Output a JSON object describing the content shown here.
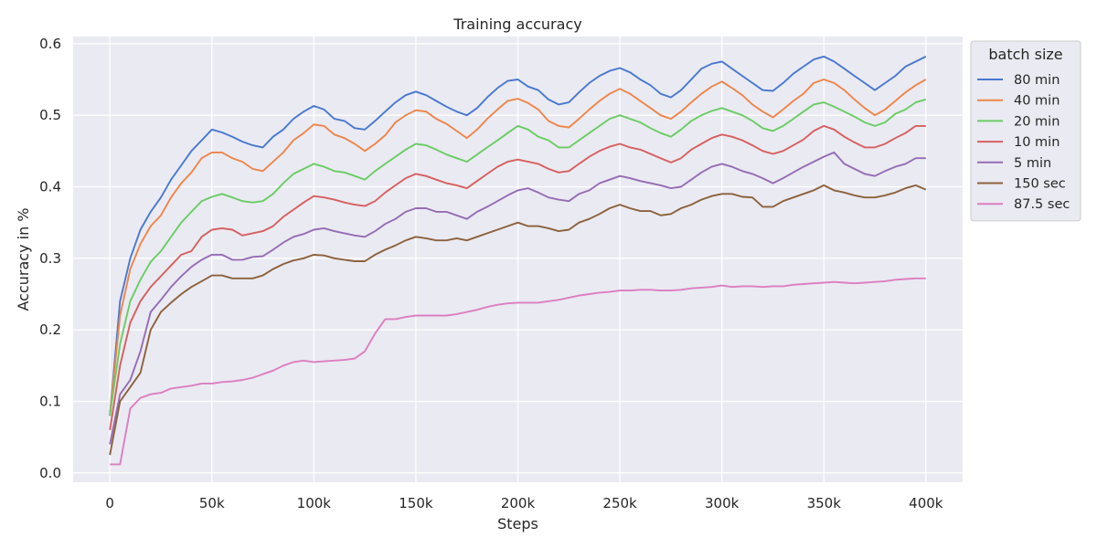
{
  "chart_data": {
    "type": "line",
    "title": "Training accuracy",
    "xlabel": "Steps",
    "ylabel": "Accuracy in %",
    "xlim": [
      -18000,
      418000
    ],
    "ylim": [
      -0.013,
      0.61
    ],
    "x_ticks": [
      0,
      50000,
      100000,
      150000,
      200000,
      250000,
      300000,
      350000,
      400000
    ],
    "x_tick_labels": [
      "0",
      "50k",
      "100k",
      "150k",
      "200k",
      "250k",
      "300k",
      "350k",
      "400k"
    ],
    "y_ticks": [
      0.0,
      0.1,
      0.2,
      0.3,
      0.4,
      0.5,
      0.6
    ],
    "y_tick_labels": [
      "0.0",
      "0.1",
      "0.2",
      "0.3",
      "0.4",
      "0.5",
      "0.6"
    ],
    "grid": true,
    "legend": {
      "title": "batch size",
      "placement": "outside-right"
    },
    "x": [
      0,
      5000,
      10000,
      15000,
      20000,
      25000,
      30000,
      35000,
      40000,
      45000,
      50000,
      55000,
      60000,
      65000,
      70000,
      75000,
      80000,
      85000,
      90000,
      95000,
      100000,
      105000,
      110000,
      115000,
      120000,
      125000,
      130000,
      135000,
      140000,
      145000,
      150000,
      155000,
      160000,
      165000,
      170000,
      175000,
      180000,
      185000,
      190000,
      195000,
      200000,
      205000,
      210000,
      215000,
      220000,
      225000,
      230000,
      235000,
      240000,
      245000,
      250000,
      255000,
      260000,
      265000,
      270000,
      275000,
      280000,
      285000,
      290000,
      295000,
      300000,
      305000,
      310000,
      315000,
      320000,
      325000,
      330000,
      335000,
      340000,
      345000,
      350000,
      355000,
      360000,
      365000,
      370000,
      375000,
      380000,
      385000,
      390000,
      395000,
      400000
    ],
    "series": [
      {
        "name": "80 min",
        "color": "#4878d0",
        "values": [
          0.08,
          0.24,
          0.3,
          0.34,
          0.365,
          0.385,
          0.41,
          0.43,
          0.45,
          0.465,
          0.48,
          0.476,
          0.47,
          0.463,
          0.458,
          0.455,
          0.47,
          0.48,
          0.495,
          0.505,
          0.513,
          0.508,
          0.495,
          0.492,
          0.482,
          0.48,
          0.492,
          0.505,
          0.518,
          0.528,
          0.533,
          0.528,
          0.52,
          0.512,
          0.505,
          0.5,
          0.51,
          0.525,
          0.538,
          0.548,
          0.55,
          0.54,
          0.535,
          0.522,
          0.515,
          0.518,
          0.532,
          0.545,
          0.555,
          0.562,
          0.566,
          0.56,
          0.55,
          0.542,
          0.53,
          0.525,
          0.535,
          0.55,
          0.565,
          0.572,
          0.575,
          0.565,
          0.555,
          0.545,
          0.535,
          0.534,
          0.545,
          0.558,
          0.568,
          0.578,
          0.582,
          0.575,
          0.565,
          0.555,
          0.545,
          0.535,
          0.545,
          0.555,
          0.568,
          0.575,
          0.582
        ]
      },
      {
        "name": "40 min",
        "color": "#ee854a",
        "values": [
          0.08,
          0.22,
          0.285,
          0.32,
          0.345,
          0.36,
          0.385,
          0.405,
          0.42,
          0.44,
          0.448,
          0.448,
          0.44,
          0.435,
          0.425,
          0.422,
          0.435,
          0.448,
          0.465,
          0.475,
          0.487,
          0.485,
          0.473,
          0.468,
          0.46,
          0.45,
          0.46,
          0.472,
          0.49,
          0.5,
          0.507,
          0.505,
          0.495,
          0.488,
          0.478,
          0.468,
          0.48,
          0.495,
          0.508,
          0.52,
          0.523,
          0.517,
          0.508,
          0.492,
          0.485,
          0.483,
          0.495,
          0.508,
          0.52,
          0.53,
          0.537,
          0.53,
          0.52,
          0.51,
          0.5,
          0.495,
          0.505,
          0.518,
          0.53,
          0.54,
          0.547,
          0.538,
          0.528,
          0.515,
          0.505,
          0.497,
          0.508,
          0.52,
          0.53,
          0.545,
          0.55,
          0.545,
          0.535,
          0.522,
          0.51,
          0.5,
          0.508,
          0.52,
          0.532,
          0.542,
          0.55
        ]
      },
      {
        "name": "20 min",
        "color": "#6acc64",
        "values": [
          0.08,
          0.18,
          0.24,
          0.27,
          0.295,
          0.31,
          0.33,
          0.35,
          0.365,
          0.38,
          0.386,
          0.39,
          0.385,
          0.38,
          0.378,
          0.38,
          0.39,
          0.405,
          0.418,
          0.425,
          0.432,
          0.428,
          0.422,
          0.42,
          0.415,
          0.41,
          0.422,
          0.432,
          0.442,
          0.452,
          0.46,
          0.458,
          0.452,
          0.445,
          0.44,
          0.435,
          0.445,
          0.455,
          0.465,
          0.475,
          0.485,
          0.48,
          0.47,
          0.465,
          0.455,
          0.455,
          0.465,
          0.475,
          0.485,
          0.495,
          0.5,
          0.495,
          0.49,
          0.482,
          0.475,
          0.47,
          0.48,
          0.492,
          0.5,
          0.506,
          0.51,
          0.505,
          0.5,
          0.492,
          0.482,
          0.478,
          0.485,
          0.495,
          0.505,
          0.515,
          0.518,
          0.512,
          0.505,
          0.498,
          0.49,
          0.485,
          0.49,
          0.502,
          0.508,
          0.518,
          0.522
        ]
      },
      {
        "name": "10 min",
        "color": "#d65f5f",
        "values": [
          0.06,
          0.15,
          0.21,
          0.24,
          0.26,
          0.275,
          0.29,
          0.305,
          0.31,
          0.33,
          0.34,
          0.342,
          0.34,
          0.332,
          0.335,
          0.338,
          0.345,
          0.358,
          0.368,
          0.378,
          0.387,
          0.385,
          0.382,
          0.378,
          0.375,
          0.373,
          0.38,
          0.392,
          0.402,
          0.412,
          0.418,
          0.415,
          0.41,
          0.405,
          0.402,
          0.398,
          0.408,
          0.418,
          0.428,
          0.435,
          0.438,
          0.435,
          0.432,
          0.425,
          0.42,
          0.422,
          0.432,
          0.442,
          0.45,
          0.456,
          0.46,
          0.455,
          0.452,
          0.446,
          0.44,
          0.434,
          0.44,
          0.452,
          0.46,
          0.468,
          0.473,
          0.47,
          0.465,
          0.458,
          0.45,
          0.446,
          0.45,
          0.458,
          0.466,
          0.478,
          0.485,
          0.48,
          0.47,
          0.462,
          0.455,
          0.455,
          0.46,
          0.468,
          0.475,
          0.485,
          0.485
        ]
      },
      {
        "name": "5 min",
        "color": "#956cb4",
        "values": [
          0.04,
          0.11,
          0.13,
          0.17,
          0.225,
          0.242,
          0.26,
          0.275,
          0.288,
          0.298,
          0.305,
          0.305,
          0.298,
          0.298,
          0.302,
          0.303,
          0.312,
          0.322,
          0.33,
          0.334,
          0.34,
          0.342,
          0.338,
          0.335,
          0.332,
          0.33,
          0.338,
          0.348,
          0.355,
          0.365,
          0.37,
          0.37,
          0.365,
          0.365,
          0.36,
          0.355,
          0.365,
          0.372,
          0.38,
          0.388,
          0.395,
          0.398,
          0.392,
          0.385,
          0.382,
          0.38,
          0.39,
          0.395,
          0.405,
          0.41,
          0.415,
          0.412,
          0.408,
          0.405,
          0.402,
          0.398,
          0.4,
          0.41,
          0.42,
          0.428,
          0.432,
          0.428,
          0.422,
          0.418,
          0.412,
          0.405,
          0.412,
          0.42,
          0.428,
          0.435,
          0.442,
          0.448,
          0.432,
          0.425,
          0.418,
          0.415,
          0.422,
          0.428,
          0.432,
          0.44,
          0.44
        ]
      },
      {
        "name": "150 sec",
        "color": "#8c613c",
        "values": [
          0.025,
          0.1,
          0.12,
          0.14,
          0.2,
          0.225,
          0.238,
          0.25,
          0.26,
          0.268,
          0.276,
          0.276,
          0.272,
          0.272,
          0.272,
          0.276,
          0.285,
          0.292,
          0.297,
          0.3,
          0.305,
          0.304,
          0.3,
          0.298,
          0.296,
          0.296,
          0.305,
          0.312,
          0.318,
          0.325,
          0.33,
          0.328,
          0.325,
          0.325,
          0.328,
          0.325,
          0.33,
          0.335,
          0.34,
          0.345,
          0.35,
          0.345,
          0.345,
          0.342,
          0.338,
          0.34,
          0.35,
          0.355,
          0.362,
          0.37,
          0.375,
          0.37,
          0.366,
          0.366,
          0.36,
          0.362,
          0.37,
          0.375,
          0.382,
          0.387,
          0.39,
          0.39,
          0.386,
          0.385,
          0.372,
          0.372,
          0.38,
          0.385,
          0.39,
          0.395,
          0.402,
          0.395,
          0.392,
          0.388,
          0.385,
          0.385,
          0.388,
          0.392,
          0.398,
          0.402,
          0.396
        ]
      },
      {
        "name": "87.5 sec",
        "color": "#dc7ec0",
        "values": [
          0.012,
          0.012,
          0.09,
          0.105,
          0.11,
          0.112,
          0.118,
          0.12,
          0.122,
          0.125,
          0.125,
          0.127,
          0.128,
          0.13,
          0.133,
          0.138,
          0.143,
          0.15,
          0.155,
          0.157,
          0.155,
          0.156,
          0.157,
          0.158,
          0.16,
          0.17,
          0.195,
          0.215,
          0.215,
          0.218,
          0.22,
          0.22,
          0.22,
          0.22,
          0.222,
          0.225,
          0.228,
          0.232,
          0.235,
          0.237,
          0.238,
          0.238,
          0.238,
          0.24,
          0.242,
          0.245,
          0.248,
          0.25,
          0.252,
          0.253,
          0.255,
          0.255,
          0.256,
          0.256,
          0.255,
          0.255,
          0.256,
          0.258,
          0.259,
          0.26,
          0.262,
          0.26,
          0.261,
          0.261,
          0.26,
          0.261,
          0.261,
          0.263,
          0.264,
          0.265,
          0.266,
          0.267,
          0.266,
          0.265,
          0.266,
          0.267,
          0.268,
          0.27,
          0.271,
          0.272,
          0.272
        ]
      }
    ]
  }
}
